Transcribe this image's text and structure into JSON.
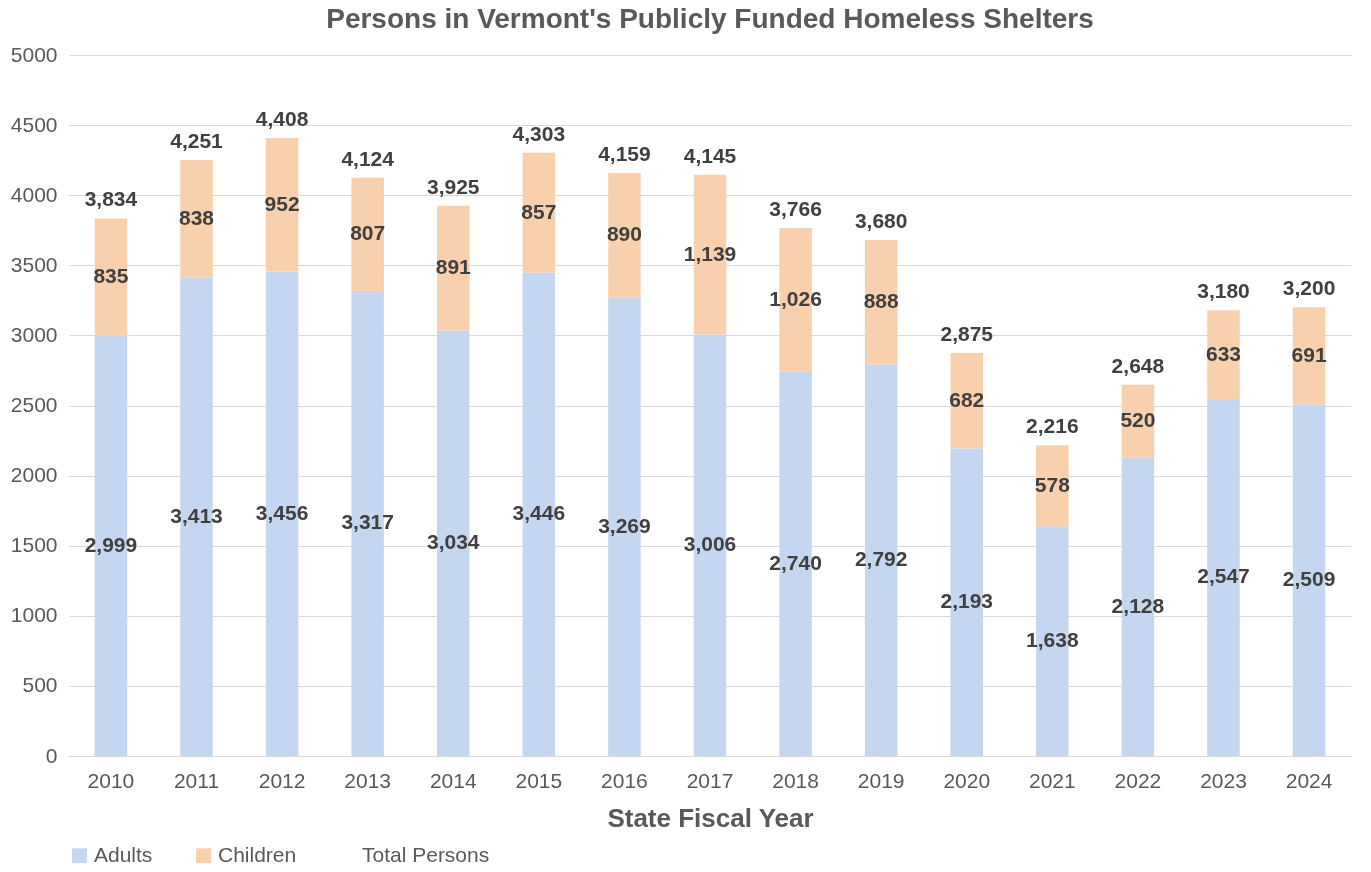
{
  "chart_data": {
    "type": "bar",
    "title": "Persons in Vermont's Publicly Funded Homeless Shelters",
    "xlabel": "State Fiscal Year",
    "categories": [
      "2010",
      "2011",
      "2012",
      "2013",
      "2014",
      "2015",
      "2016",
      "2017",
      "2018",
      "2019",
      "2020",
      "2021",
      "2022",
      "2023",
      "2024"
    ],
    "series": [
      {
        "name": "Adults",
        "color": "#c5d7f0",
        "values": [
          2999,
          3413,
          3456,
          3317,
          3034,
          3446,
          3269,
          3006,
          2740,
          2792,
          2193,
          1638,
          2128,
          2547,
          2509
        ],
        "value_labels": [
          "2,999",
          "3,413",
          "3,456",
          "3,317",
          "3,034",
          "3,446",
          "3,269",
          "3,006",
          "2,740",
          "2,792",
          "2,193",
          "1,638",
          "2,128",
          "2,547",
          "2,509"
        ]
      },
      {
        "name": "Children",
        "color": "#f9d0ad",
        "values": [
          835,
          838,
          952,
          807,
          891,
          857,
          890,
          1139,
          1026,
          888,
          682,
          578,
          520,
          633,
          691
        ],
        "value_labels": [
          "835",
          "838",
          "952",
          "807",
          "891",
          "857",
          "890",
          "1,139",
          "1,026",
          "888",
          "682",
          "578",
          "520",
          "633",
          "691"
        ]
      }
    ],
    "stacked": true,
    "totals": [
      "3,834",
      "4,251",
      "4,408",
      "4,124",
      "3,925",
      "4,303",
      "4,159",
      "4,145",
      "3,766",
      "3,680",
      "2,875",
      "2,216",
      "2,648",
      "3,180",
      "3,200"
    ],
    "annotations": [
      "Total Persons"
    ],
    "ylim": [
      0,
      5000
    ],
    "yticks": [
      0,
      500,
      1000,
      1500,
      2000,
      2500,
      3000,
      3500,
      4000,
      4500,
      5000
    ],
    "grid": "y",
    "legend": "bottom"
  }
}
